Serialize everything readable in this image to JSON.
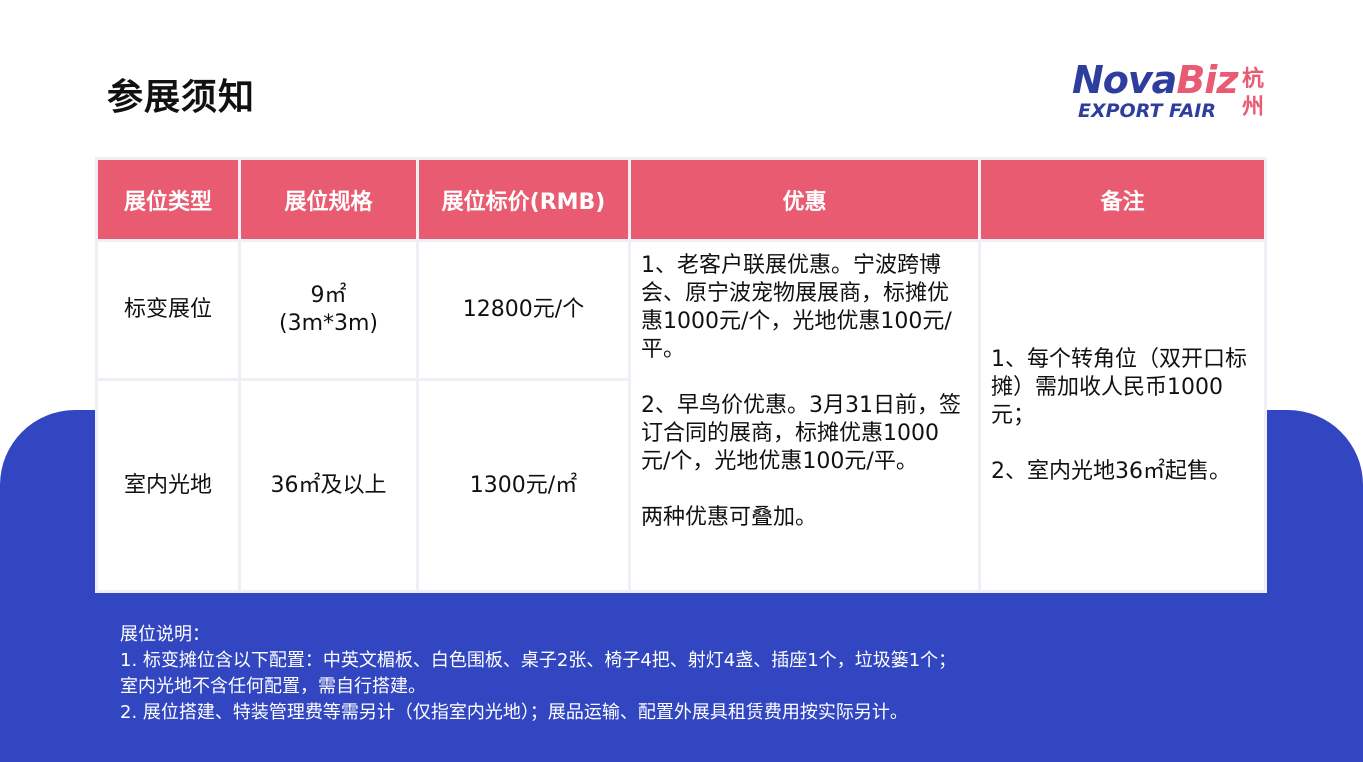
{
  "title": "参展须知",
  "logo": {
    "text": "NovaBiz EXPORT FAIR 杭州",
    "nova": "Nova",
    "biz": "Biz",
    "export": "EXPORT FAIR",
    "city": "杭州"
  },
  "table": {
    "headers": [
      "展位类型",
      "展位规格",
      "展位标价(RMB)",
      "优惠",
      "备注"
    ],
    "rows": [
      {
        "type": "标变展位",
        "spec": "9㎡",
        "spec2": "(3m*3m)",
        "price": "12800元/个"
      },
      {
        "type": "室内光地",
        "spec": "36㎡及以上",
        "price": "1300元/㎡"
      }
    ],
    "discount": [
      "1、老客户联展优惠。宁波跨博会、原宁波宠物展展商，标摊优惠1000元/个，光地优惠100元/平。",
      "2、早鸟价优惠。3月31日前，签订合同的展商，标摊优惠1000元/个，光地优惠100元/平。",
      "两种优惠可叠加。"
    ],
    "remarks": [
      "1、每个转角位（双开口标摊）需加收人民币1000元；",
      "2、室内光地36㎡起售。"
    ]
  },
  "notes": [
    "展位说明：",
    "1. 标变摊位含以下配置：中英文楣板、白色围板、桌子2张、椅子4把、射灯4盏、插座1个，垃圾篓1个；",
    "室内光地不含任何配置，需自行搭建。",
    "2. 展位搭建、特装管理费等需另计（仅指室内光地）；展品运输、配置外展具租赁费用按实际另计。"
  ],
  "colors": {
    "accent": "#e85b70",
    "blue": "#3146c0",
    "logo_blue": "#2d3e9e"
  }
}
